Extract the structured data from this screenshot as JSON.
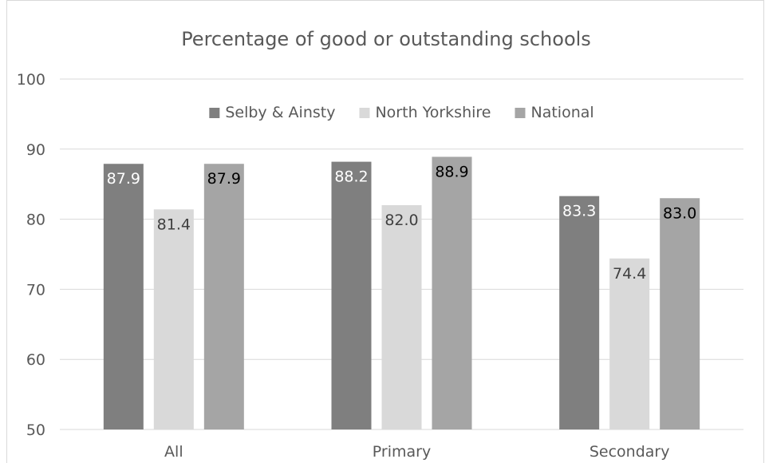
{
  "chart_data": {
    "type": "bar",
    "title": "Percentage of good or outstanding schools",
    "xlabel": "",
    "ylabel": "",
    "categories": [
      "All",
      "Primary",
      "Secondary"
    ],
    "series": [
      {
        "name": "Selby & Ainsty",
        "values": [
          87.9,
          88.2,
          83.3
        ],
        "color": "#7f7f7f",
        "label_color": "#ffffff"
      },
      {
        "name": "North Yorkshire",
        "values": [
          81.4,
          82.0,
          74.4
        ],
        "color": "#d9d9d9",
        "label_color": "#404040"
      },
      {
        "name": "National",
        "values": [
          87.9,
          88.9,
          83.0
        ],
        "color": "#a5a5a5",
        "label_color": "#000000"
      }
    ],
    "ylim": [
      50,
      100
    ],
    "yticks": [
      50,
      60,
      70,
      80,
      90,
      100
    ],
    "grid": true,
    "legend_position": "top"
  }
}
